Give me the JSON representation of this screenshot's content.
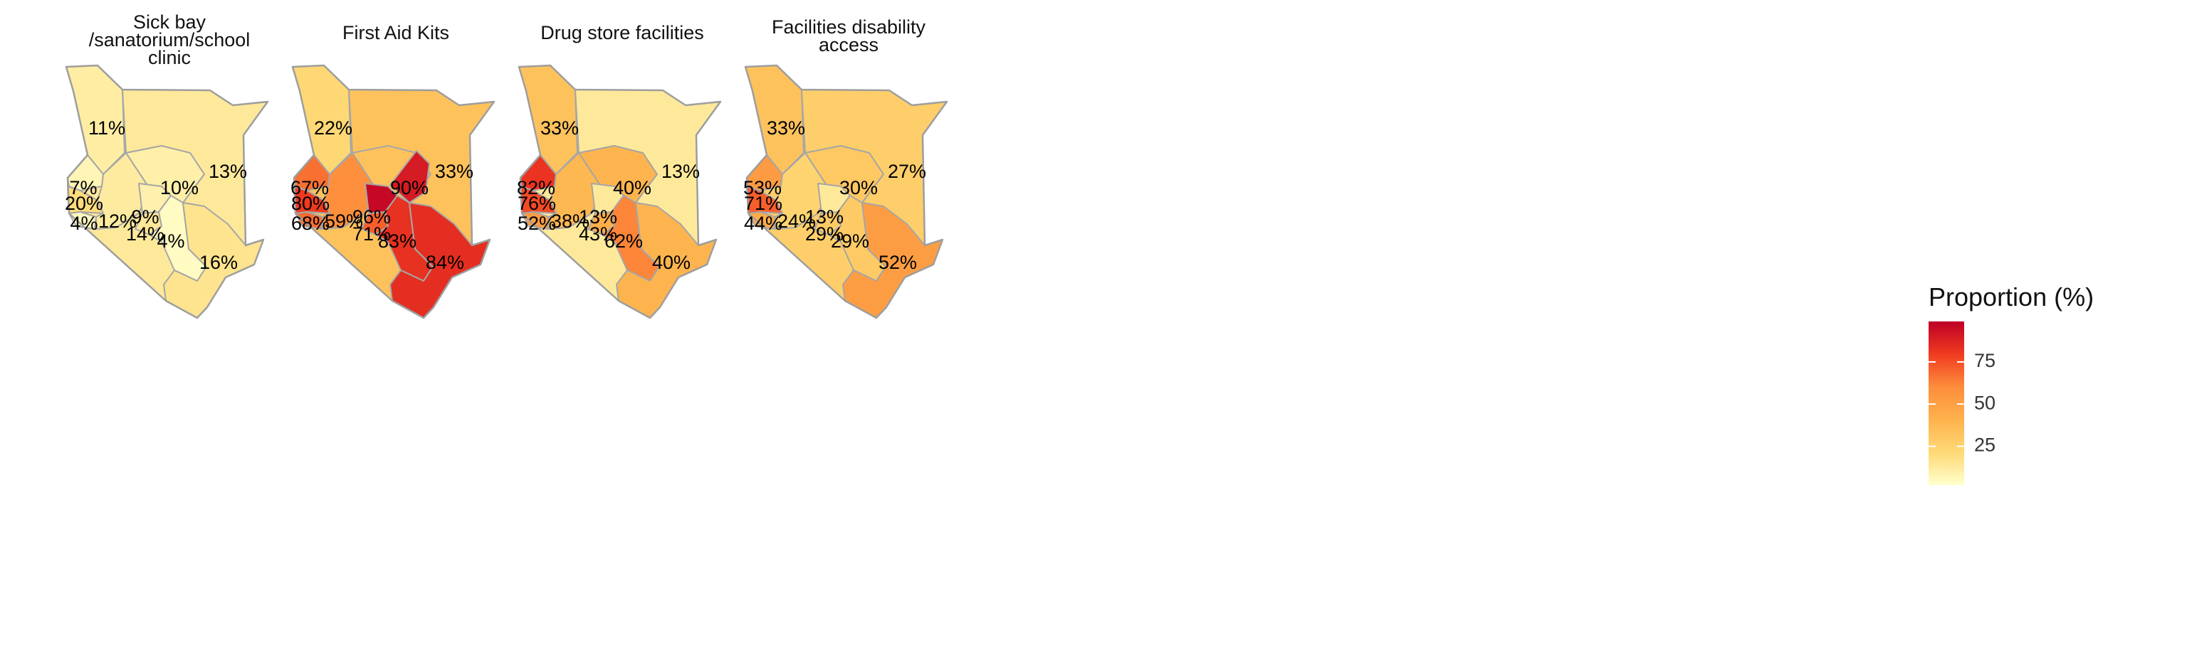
{
  "legend": {
    "title": "Proportion (%)",
    "ticks": [
      75,
      50,
      25
    ],
    "domain": [
      2,
      99
    ],
    "colors": [
      "#ffffcc",
      "#fed976",
      "#feb24c",
      "#fd8d3c",
      "#f03b20",
      "#bd0026"
    ]
  },
  "chart_data": [
    {
      "type": "map",
      "title": "Sick bay /sanatorium/school clinic",
      "title_lines": [
        "Sick bay",
        "/sanatorium/school",
        "clinic"
      ],
      "regions": [
        {
          "region": "North-west",
          "value": 11,
          "label": "11%"
        },
        {
          "region": "North-east",
          "value": 13,
          "label": "13%"
        },
        {
          "region": "Mid-east",
          "value": 10,
          "label": "10%"
        },
        {
          "region": "Upper east",
          "value": null,
          "label": ""
        },
        {
          "region": "West-north",
          "value": 7,
          "label": "7%"
        },
        {
          "region": "West-mid",
          "value": 20,
          "label": "20%"
        },
        {
          "region": "West-south",
          "value": 4,
          "label": "4%"
        },
        {
          "region": "Rift south",
          "value": 12,
          "label": "12%"
        },
        {
          "region": "Central-north",
          "value": 9,
          "label": "9%"
        },
        {
          "region": "Central",
          "value": 14,
          "label": "14%"
        },
        {
          "region": "East-central",
          "value": 4,
          "label": "4%"
        },
        {
          "region": "Coast",
          "value": 16,
          "label": "16%"
        }
      ]
    },
    {
      "type": "map",
      "title": "First Aid Kits",
      "title_lines": [
        "First Aid Kits"
      ],
      "regions": [
        {
          "region": "North-west",
          "value": 22,
          "label": "22%"
        },
        {
          "region": "North-east",
          "value": 33,
          "label": "33%"
        },
        {
          "region": "Mid-east",
          "value": null,
          "label": ""
        },
        {
          "region": "Upper east",
          "value": 90,
          "label": "90%"
        },
        {
          "region": "West-north",
          "value": 67,
          "label": "67%"
        },
        {
          "region": "West-mid",
          "value": 80,
          "label": "80%"
        },
        {
          "region": "West-south",
          "value": 68,
          "label": "68%"
        },
        {
          "region": "Rift south",
          "value": 59,
          "label": "59%"
        },
        {
          "region": "Central-north",
          "value": 96,
          "label": "96%"
        },
        {
          "region": "Central",
          "value": 71,
          "label": "71%"
        },
        {
          "region": "East-central",
          "value": 83,
          "label": "83%"
        },
        {
          "region": "Coast",
          "value": 84,
          "label": "84%"
        }
      ]
    },
    {
      "type": "map",
      "title": "Drug store facilities",
      "title_lines": [
        "Drug store facilities"
      ],
      "regions": [
        {
          "region": "North-west",
          "value": 33,
          "label": "33%"
        },
        {
          "region": "North-east",
          "value": 13,
          "label": "13%"
        },
        {
          "region": "Mid-east",
          "value": 40,
          "label": "40%"
        },
        {
          "region": "Upper east",
          "value": null,
          "label": ""
        },
        {
          "region": "West-north",
          "value": 82,
          "label": "82%"
        },
        {
          "region": "West-mid",
          "value": 76,
          "label": "76%"
        },
        {
          "region": "West-south",
          "value": 52,
          "label": "52%"
        },
        {
          "region": "Rift south",
          "value": 38,
          "label": "38%"
        },
        {
          "region": "Central-north",
          "value": 13,
          "label": "13%"
        },
        {
          "region": "Central",
          "value": 43,
          "label": "43%"
        },
        {
          "region": "East-central",
          "value": 62,
          "label": "62%"
        },
        {
          "region": "Coast",
          "value": 40,
          "label": "40%"
        }
      ]
    },
    {
      "type": "map",
      "title": "Facilities disability access",
      "title_lines": [
        "Facilities disability",
        "access"
      ],
      "regions": [
        {
          "region": "North-west",
          "value": 33,
          "label": "33%"
        },
        {
          "region": "North-east",
          "value": 27,
          "label": "27%"
        },
        {
          "region": "Mid-east",
          "value": 30,
          "label": "30%"
        },
        {
          "region": "Upper east",
          "value": null,
          "label": ""
        },
        {
          "region": "West-north",
          "value": 53,
          "label": "53%"
        },
        {
          "region": "West-mid",
          "value": 71,
          "label": "71%"
        },
        {
          "region": "West-south",
          "value": 44,
          "label": "44%"
        },
        {
          "region": "Rift south",
          "value": 24,
          "label": "24%"
        },
        {
          "region": "Central-north",
          "value": 13,
          "label": "13%"
        },
        {
          "region": "Central",
          "value": 29,
          "label": "29%"
        },
        {
          "region": "East-central",
          "value": 29,
          "label": "29%"
        },
        {
          "region": "Coast",
          "value": 52,
          "label": "52%"
        }
      ]
    }
  ]
}
